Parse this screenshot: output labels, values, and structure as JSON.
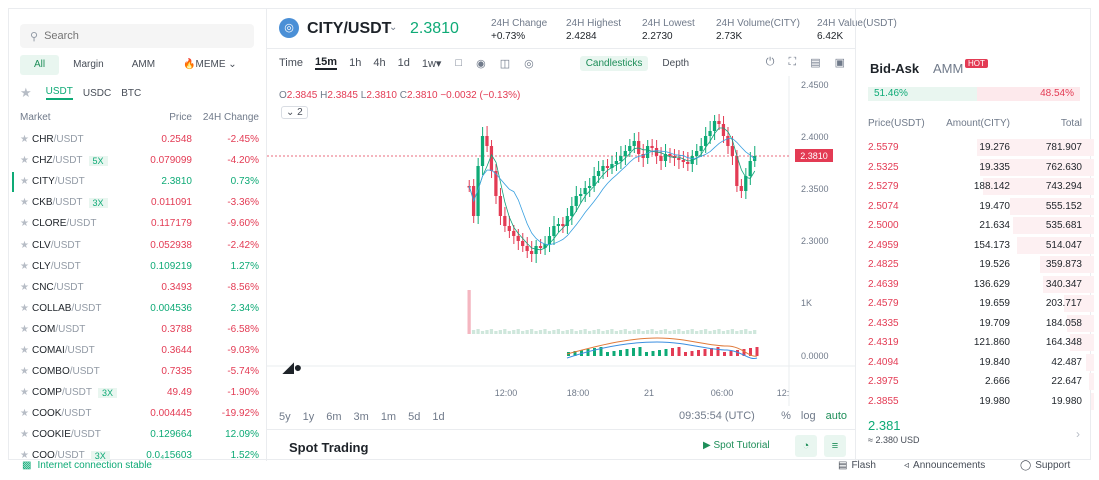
{
  "search": {
    "placeholder": "Search"
  },
  "market_tabs": [
    "All",
    "Margin",
    "AMM",
    "🔥MEME"
  ],
  "quote_tabs": [
    "USDT",
    "USDC",
    "BTC"
  ],
  "market_header": {
    "market": "Market",
    "price": "Price",
    "change": "24H Change"
  },
  "markets": [
    {
      "base": "CHR",
      "quote": "/USDT",
      "lev": "",
      "price": "0.2548",
      "change": "-2.45%",
      "up": false
    },
    {
      "base": "CHZ",
      "quote": "/USDT",
      "lev": "5X",
      "price": "0.079099",
      "change": "-4.20%",
      "up": false
    },
    {
      "base": "CITY",
      "quote": "/USDT",
      "lev": "",
      "price": "2.3810",
      "change": "0.73%",
      "up": true
    },
    {
      "base": "CKB",
      "quote": "/USDT",
      "lev": "3X",
      "price": "0.011091",
      "change": "-3.36%",
      "up": false
    },
    {
      "base": "CLORE",
      "quote": "/USDT",
      "lev": "",
      "price": "0.117179",
      "change": "-9.60%",
      "up": false
    },
    {
      "base": "CLV",
      "quote": "/USDT",
      "lev": "",
      "price": "0.052938",
      "change": "-2.42%",
      "up": false
    },
    {
      "base": "CLY",
      "quote": "/USDT",
      "lev": "",
      "price": "0.109219",
      "change": "1.27%",
      "up": true
    },
    {
      "base": "CNC",
      "quote": "/USDT",
      "lev": "",
      "price": "0.3493",
      "change": "-8.56%",
      "up": false
    },
    {
      "base": "COLLAB",
      "quote": "/USDT",
      "lev": "",
      "price": "0.004536",
      "change": "2.34%",
      "up": true
    },
    {
      "base": "COM",
      "quote": "/USDT",
      "lev": "",
      "price": "0.3788",
      "change": "-6.58%",
      "up": false
    },
    {
      "base": "COMAI",
      "quote": "/USDT",
      "lev": "",
      "price": "0.3644",
      "change": "-9.03%",
      "up": false
    },
    {
      "base": "COMBO",
      "quote": "/USDT",
      "lev": "",
      "price": "0.7335",
      "change": "-5.74%",
      "up": false
    },
    {
      "base": "COMP",
      "quote": "/USDT",
      "lev": "3X",
      "price": "49.49",
      "change": "-1.90%",
      "up": false
    },
    {
      "base": "COOK",
      "quote": "/USDT",
      "lev": "",
      "price": "0.004445",
      "change": "-19.92%",
      "up": false
    },
    {
      "base": "COOKIE",
      "quote": "/USDT",
      "lev": "",
      "price": "0.129664",
      "change": "12.09%",
      "up": true
    },
    {
      "base": "COO",
      "quote": "/USDT",
      "lev": "3X",
      "price": "0.0₄15603",
      "change": "1.52%",
      "up": true
    }
  ],
  "header": {
    "pair": "CITY/USDT",
    "price": "2.3810",
    "change_label": "24H Change",
    "change_value": "+0.73%",
    "high_label": "24H Highest",
    "high_value": "2.4284",
    "low_label": "24H Lowest",
    "low_value": "2.2730",
    "vol_label": "24H Volume(CITY)",
    "vol_value": "2.73K",
    "value_label": "24H Value(USDT)",
    "value_value": "6.42K"
  },
  "toolbar": {
    "time": "Time",
    "intervals": [
      "15m",
      "1h",
      "4h",
      "1d",
      "1w"
    ],
    "candles": "Candlesticks",
    "depth": "Depth"
  },
  "ohlc": {
    "o": "2.3845",
    "h": "2.3845",
    "l": "2.3810",
    "c": "2.3810",
    "chg": "−0.0032 (−0.13%)",
    "indicator_count": "2"
  },
  "axis": {
    "y_labels": [
      "2.4500",
      "2.4000",
      "2.3500",
      "2.3000",
      "1K",
      "0.0000"
    ],
    "x_labels": [
      "12:00",
      "18:00",
      "21",
      "06:00",
      "12:"
    ],
    "current_price": "2.3810"
  },
  "ranges": {
    "items": [
      "5y",
      "1y",
      "6m",
      "3m",
      "1m",
      "5d",
      "1d"
    ],
    "clock": "09:35:54 (UTC)",
    "pct": "%",
    "log": "log",
    "auto": "auto"
  },
  "spot": {
    "title": "Spot Trading",
    "tutorial": "Spot Tutorial"
  },
  "orderbook": {
    "tab_bidask": "Bid-Ask",
    "tab_amm": "AMM",
    "hot": "HOT",
    "buy_ratio": "51.46%",
    "sell_ratio": "48.54%",
    "head_price": "Price(USDT)",
    "head_amount": "Amount(CITY)",
    "head_total": "Total",
    "asks": [
      {
        "price": "2.5579",
        "amount": "19.276",
        "total": "781.907",
        "depth": 0.78
      },
      {
        "price": "2.5325",
        "amount": "19.335",
        "total": "762.630",
        "depth": 0.76
      },
      {
        "price": "2.5279",
        "amount": "188.142",
        "total": "743.294",
        "depth": 0.74
      },
      {
        "price": "2.5074",
        "amount": "19.470",
        "total": "555.152",
        "depth": 0.56
      },
      {
        "price": "2.5000",
        "amount": "21.634",
        "total": "535.681",
        "depth": 0.54
      },
      {
        "price": "2.4959",
        "amount": "154.173",
        "total": "514.047",
        "depth": 0.51
      },
      {
        "price": "2.4825",
        "amount": "19.526",
        "total": "359.873",
        "depth": 0.36
      },
      {
        "price": "2.4639",
        "amount": "136.629",
        "total": "340.347",
        "depth": 0.34
      },
      {
        "price": "2.4579",
        "amount": "19.659",
        "total": "203.717",
        "depth": 0.2
      },
      {
        "price": "2.4335",
        "amount": "19.709",
        "total": "184.058",
        "depth": 0.18
      },
      {
        "price": "2.4319",
        "amount": "121.860",
        "total": "164.348",
        "depth": 0.16
      },
      {
        "price": "2.4094",
        "amount": "19.840",
        "total": "42.487",
        "depth": 0.05
      },
      {
        "price": "2.3975",
        "amount": "2.666",
        "total": "22.647",
        "depth": 0.03
      },
      {
        "price": "2.3855",
        "amount": "19.980",
        "total": "19.980",
        "depth": 0.02
      }
    ],
    "last_price": "2.381",
    "last_usd": "≈ 2.380 USD"
  },
  "footer": {
    "net": "Internet connection stable",
    "flash": "Flash",
    "ann": "Announcements",
    "support": "Support"
  },
  "colors": {
    "up": "#0eaa76",
    "down": "#e33b54",
    "accent": "#1e8e59"
  }
}
